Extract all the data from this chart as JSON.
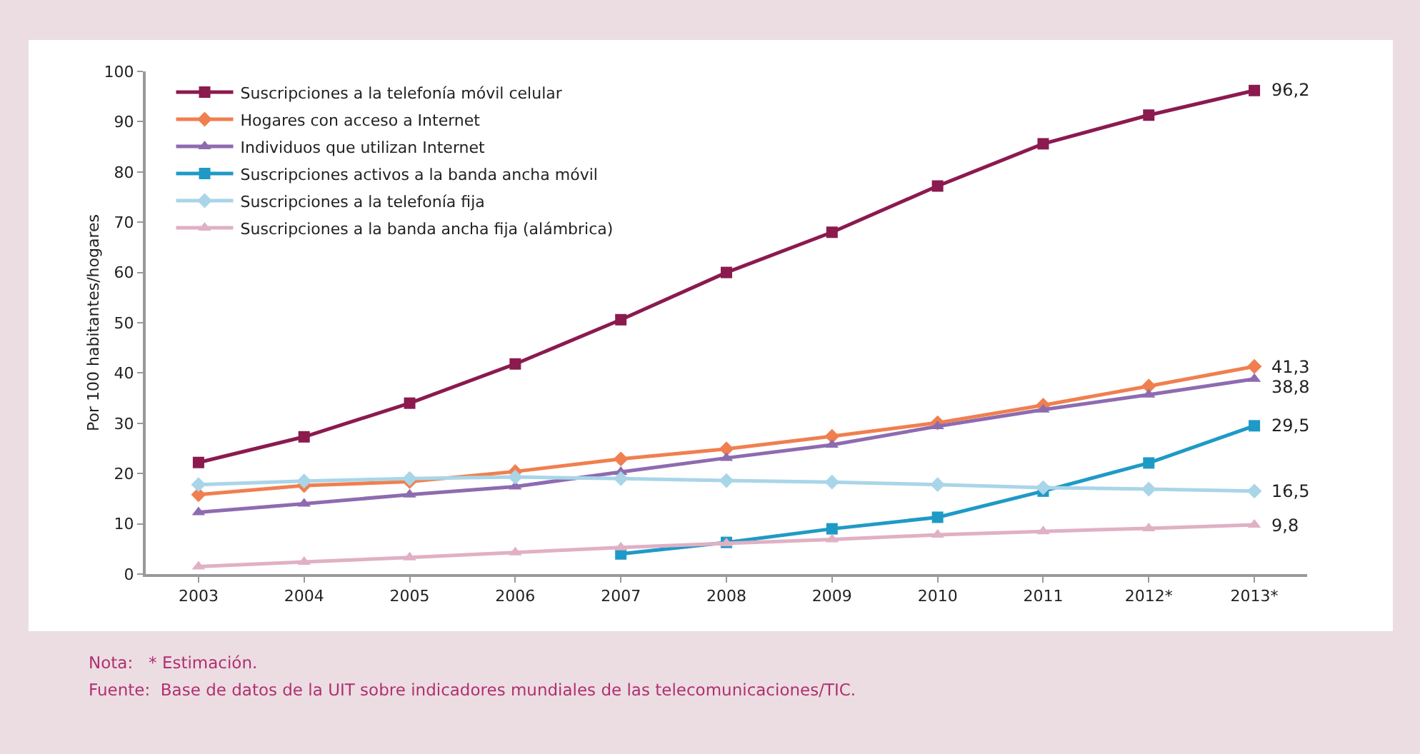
{
  "chart_data": {
    "type": "line",
    "ylabel": "Por 100 habitantes/hogares",
    "categories": [
      "2003",
      "2004",
      "2005",
      "2006",
      "2007",
      "2008",
      "2009",
      "2010",
      "2011",
      "2012*",
      "2013*"
    ],
    "ylim": [
      0,
      100
    ],
    "yticks": [
      0,
      10,
      20,
      30,
      40,
      50,
      60,
      70,
      80,
      90,
      100
    ],
    "grid": false,
    "legend": "top left",
    "line_style": "solid",
    "series": [
      {
        "name": "Suscripciones a la telefonía móvil celular",
        "color": "#8b1a4f",
        "marker": "square",
        "values": [
          22.2,
          27.3,
          34,
          41.8,
          50.6,
          60,
          68,
          77.2,
          85.6,
          91.3,
          96.2
        ],
        "value_labels": [
          null,
          null,
          null,
          null,
          null,
          null,
          null,
          null,
          null,
          null,
          "96,2"
        ]
      },
      {
        "name": "Hogares con acceso a Internet",
        "color": "#f07f4f",
        "marker": "diamond",
        "values": [
          15.8,
          17.6,
          18.4,
          20.4,
          22.9,
          24.9,
          27.4,
          30.1,
          33.6,
          37.4,
          41.3
        ],
        "value_labels": [
          null,
          null,
          null,
          null,
          null,
          null,
          null,
          null,
          null,
          null,
          "41,3"
        ]
      },
      {
        "name": "Individuos que utilizan Internet",
        "color": "#8e6bb0",
        "marker": "triangle",
        "values": [
          12.3,
          14,
          15.8,
          17.4,
          20.3,
          23.1,
          25.7,
          29.4,
          32.7,
          35.7,
          38.8
        ],
        "value_labels": [
          null,
          null,
          null,
          null,
          null,
          null,
          null,
          null,
          null,
          null,
          "38,8"
        ]
      },
      {
        "name": "Suscripciones activos a la banda ancha móvil",
        "color": "#1f9ac6",
        "marker": "square",
        "values": [
          null,
          null,
          null,
          null,
          4,
          6.3,
          9,
          11.3,
          16.5,
          22.1,
          29.5
        ],
        "value_labels": [
          null,
          null,
          null,
          null,
          null,
          null,
          null,
          null,
          null,
          null,
          "29,5"
        ]
      },
      {
        "name": "Suscripciones a la telefonía fija",
        "color": "#a9d5e8",
        "marker": "diamond",
        "values": [
          17.8,
          18.5,
          19,
          19.3,
          19,
          18.6,
          18.3,
          17.8,
          17.2,
          16.9,
          16.5
        ],
        "value_labels": [
          null,
          null,
          null,
          null,
          null,
          null,
          null,
          null,
          null,
          null,
          "16,5"
        ]
      },
      {
        "name": "Suscripciones a la banda ancha fija (alámbrica)",
        "color": "#e0b0c4",
        "marker": "triangle",
        "values": [
          1.5,
          2.4,
          3.3,
          4.3,
          5.3,
          6.1,
          6.9,
          7.8,
          8.5,
          9.1,
          9.8
        ],
        "value_labels": [
          null,
          null,
          null,
          null,
          null,
          null,
          null,
          null,
          null,
          null,
          "9,8"
        ]
      }
    ],
    "annotations": [
      "Nota:   * Estimación.",
      "Fuente:  Base de datos de la UIT sobre indicadores mundiales de las telecomunicaciones/TIC."
    ]
  }
}
